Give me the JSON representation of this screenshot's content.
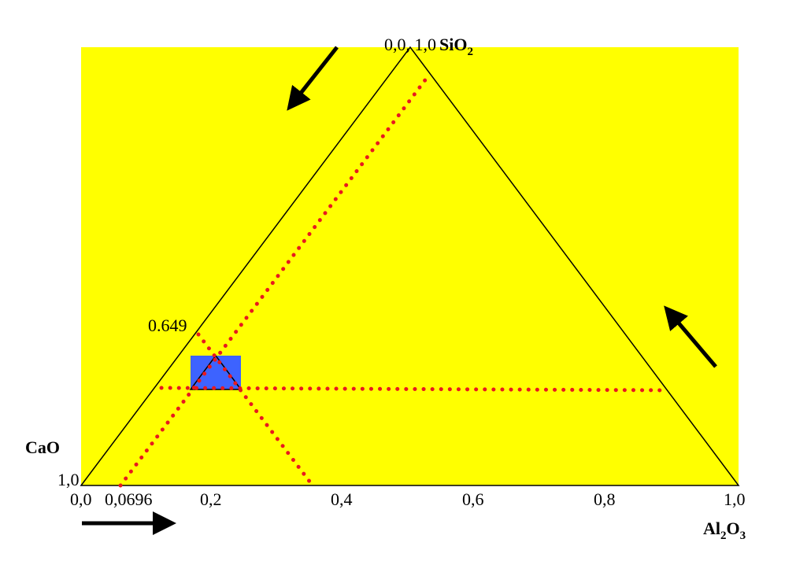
{
  "colors": {
    "background": "#ffff00",
    "triangle_stroke": "#000000",
    "dotted_line": "#e8191e",
    "highlight_box": "#3d63ff",
    "arrow": "#000000"
  },
  "vertices": {
    "top": {
      "coord": "0,0, 1,0",
      "compound_main": "SiO",
      "compound_sub": "2"
    },
    "left": {
      "coord": "1,0",
      "compound": "CaO"
    },
    "right": {
      "compound_main": "Al",
      "compound_sub1": "2",
      "compound_mid": "O",
      "compound_sub2": "3"
    }
  },
  "axis_ticks": [
    "0,0",
    "0,0696",
    "0,2",
    "0,4",
    "0,6",
    "0,8",
    "1,0"
  ],
  "annotation": "0.649",
  "arrows": [
    "down-left-arrow",
    "right-arrow",
    "up-left-arrow"
  ]
}
